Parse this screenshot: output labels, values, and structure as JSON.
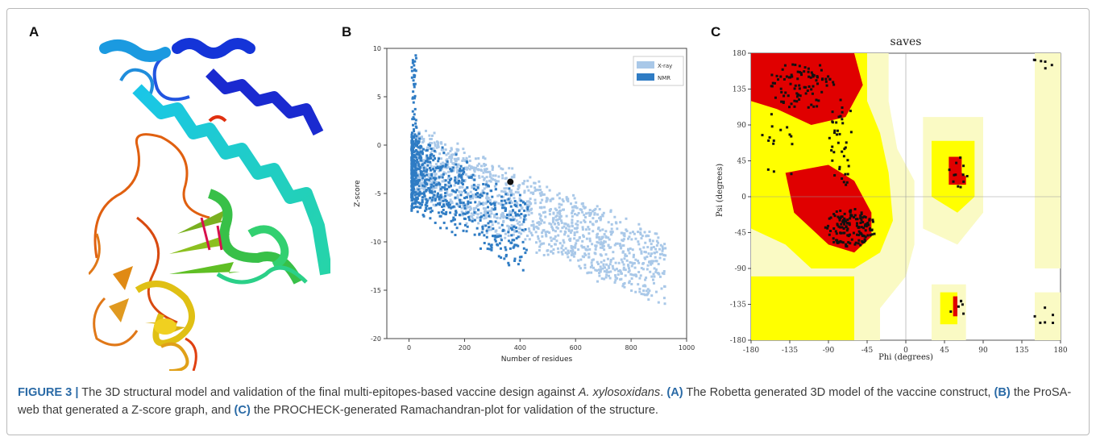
{
  "panels": {
    "a": {
      "letter": "A"
    },
    "b": {
      "letter": "B"
    },
    "c": {
      "letter": "C"
    }
  },
  "caption": {
    "label": "FIGURE 3 |",
    "text_1": "The 3D structural model and validation of the final multi-epitopes-based vaccine design against",
    "organism": "A. xylosoxidans",
    "text_2": ".",
    "ref_a": "(A)",
    "text_3": "The Robetta generated 3D model of the vaccine construct,",
    "ref_b": "(B)",
    "text_4": "the ProSA-web that generated a Z-score graph, and",
    "ref_c": "(C)",
    "text_5": "the PROCHECK-generated Ramachandran-plot for validation of the structure."
  },
  "chart_data": [
    {
      "panel": "B",
      "type": "scatter",
      "title": "",
      "xlabel": "Number of residues",
      "ylabel": "Z-score",
      "xlim": [
        -80,
        1000
      ],
      "ylim": [
        -20,
        10
      ],
      "xticks": [
        0,
        200,
        400,
        600,
        800,
        1000
      ],
      "yticks": [
        10,
        5,
        0,
        -5,
        -10,
        -15,
        -20
      ],
      "legend": {
        "placement": "top-right",
        "entries": [
          {
            "name": "X-ray",
            "color": "#a9c8e8"
          },
          {
            "name": "NMR",
            "color": "#2f7cc4"
          }
        ]
      },
      "highlight_point": {
        "x": 365,
        "y": -3.8,
        "color": "#111111"
      },
      "grid": false
    },
    {
      "panel": "C",
      "type": "scatter",
      "title": "saves",
      "xlabel": "Phi (degrees)",
      "ylabel": "Psi (degrees)",
      "xlim": [
        -180,
        180
      ],
      "ylim": [
        -180,
        180
      ],
      "xticks": [
        -180,
        -135,
        -90,
        -45,
        0,
        45,
        90,
        135,
        180
      ],
      "yticks": [
        180,
        135,
        90,
        45,
        0,
        -45,
        -90,
        -135,
        -180
      ],
      "region_colors": {
        "most_favoured": "#e00000",
        "additional": "#ffff00",
        "generous": "#fafac4",
        "disallowed": "#ffffff"
      }
    }
  ]
}
